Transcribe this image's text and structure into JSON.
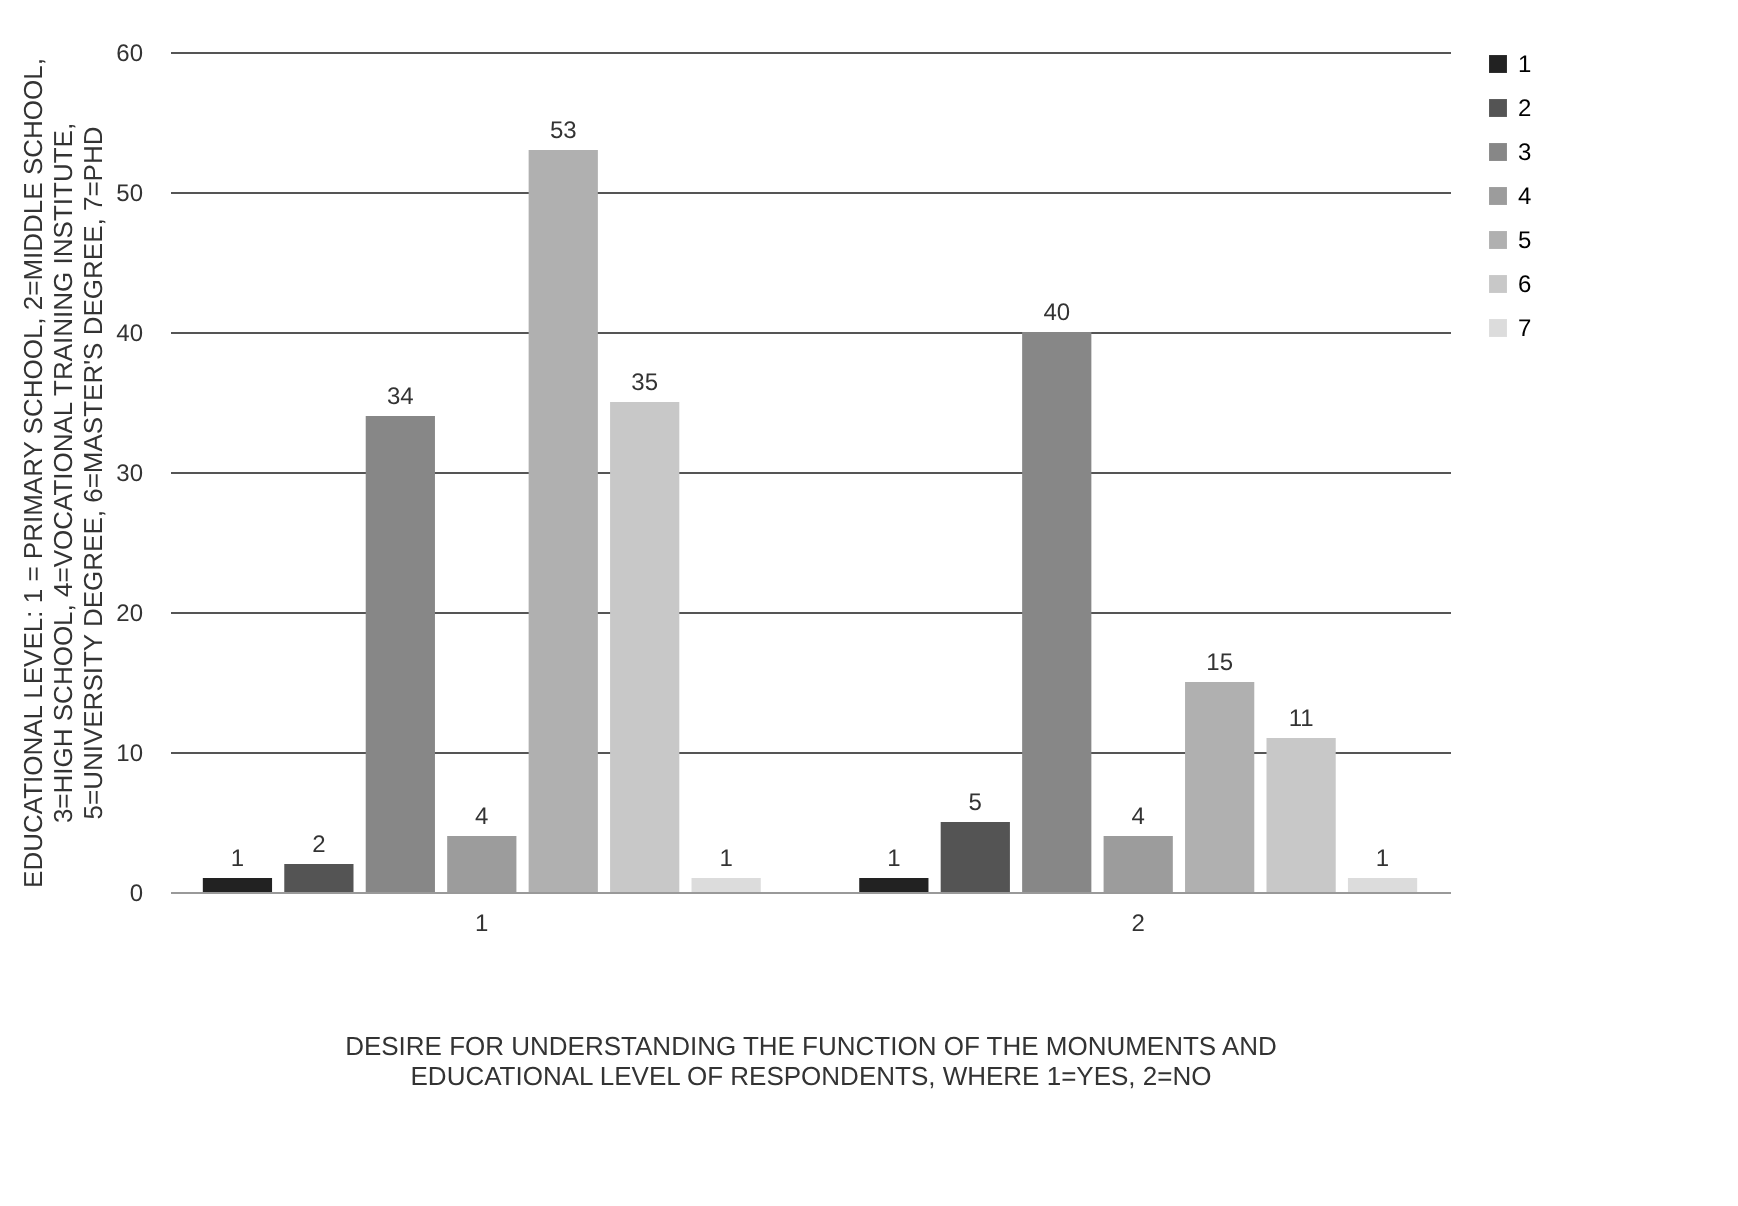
{
  "chart_data": {
    "type": "bar",
    "xlabel": "DESIRE FOR UNDERSTANDING THE FUNCTION OF THE MONUMENTS AND\nEDUCATIONAL LEVEL OF RESPONDENTS, WHERE 1=YES, 2=NO",
    "ylabel": "EDUCATIONAL LEVEL: 1 = PRIMARY SCHOOL, 2=MIDDLE SCHOOL,\n3=HIGH SCHOOL, 4=VOCATIONAL TRAINING INSTITUTE,\n5=UNIVERSITY DEGREE, 6=MASTER'S DEGREE, 7=PHD",
    "categories": [
      "1",
      "2"
    ],
    "series": [
      {
        "name": "1",
        "color": "#222222",
        "values": [
          1,
          1
        ]
      },
      {
        "name": "2",
        "color": "#545454",
        "values": [
          2,
          5
        ]
      },
      {
        "name": "3",
        "color": "#878787",
        "values": [
          34,
          40
        ]
      },
      {
        "name": "4",
        "color": "#9c9c9c",
        "values": [
          4,
          4
        ]
      },
      {
        "name": "5",
        "color": "#b0b0b0",
        "values": [
          53,
          15
        ]
      },
      {
        "name": "6",
        "color": "#c8c8c8",
        "values": [
          35,
          11
        ]
      },
      {
        "name": "7",
        "color": "#dcdcdc",
        "values": [
          1,
          1
        ]
      }
    ],
    "ylim": [
      0,
      60
    ],
    "yticks": [
      0,
      10,
      20,
      30,
      40,
      50,
      60
    ],
    "grid": "y",
    "legend": "right",
    "data_labels": true
  }
}
